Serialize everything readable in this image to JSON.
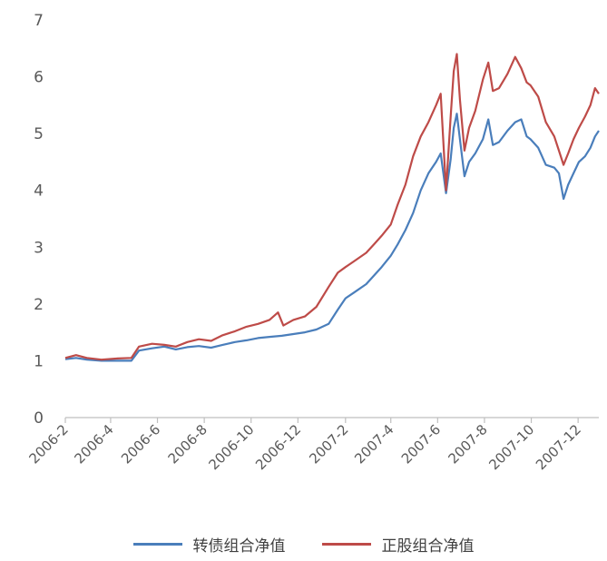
{
  "chart_data": {
    "type": "line",
    "title": "",
    "xlabel": "",
    "ylabel": "",
    "ylim": [
      0,
      7
    ],
    "yticks": [
      0,
      1,
      2,
      3,
      4,
      5,
      6,
      7
    ],
    "x_tick_labels": [
      "2006-2",
      "2006-4",
      "2006-6",
      "2006-8",
      "2006-10",
      "2006-12",
      "2007-2",
      "2007-4",
      "2007-6",
      "2007-8",
      "2007-10",
      "2007-12"
    ],
    "x_range": [
      "2006-02-01",
      "2007-12-28"
    ],
    "grid": false,
    "legend_position": "bottom",
    "series": [
      {
        "name": "转债组合净值",
        "color": "#4A7EBB",
        "points": [
          [
            "2006-02-01",
            1.03
          ],
          [
            "2006-02-15",
            1.05
          ],
          [
            "2006-03-01",
            1.02
          ],
          [
            "2006-03-20",
            1.0
          ],
          [
            "2006-04-10",
            1.0
          ],
          [
            "2006-04-28",
            1.0
          ],
          [
            "2006-05-08",
            1.18
          ],
          [
            "2006-05-25",
            1.22
          ],
          [
            "2006-06-10",
            1.25
          ],
          [
            "2006-06-25",
            1.2
          ],
          [
            "2006-07-10",
            1.24
          ],
          [
            "2006-07-25",
            1.26
          ],
          [
            "2006-08-10",
            1.23
          ],
          [
            "2006-08-25",
            1.28
          ],
          [
            "2006-09-10",
            1.33
          ],
          [
            "2006-09-25",
            1.36
          ],
          [
            "2006-10-10",
            1.4
          ],
          [
            "2006-10-25",
            1.42
          ],
          [
            "2006-11-10",
            1.44
          ],
          [
            "2006-11-25",
            1.47
          ],
          [
            "2006-12-10",
            1.5
          ],
          [
            "2006-12-25",
            1.55
          ],
          [
            "2007-01-10",
            1.65
          ],
          [
            "2007-01-22",
            1.9
          ],
          [
            "2007-02-01",
            2.1
          ],
          [
            "2007-02-12",
            2.2
          ],
          [
            "2007-02-28",
            2.35
          ],
          [
            "2007-03-10",
            2.5
          ],
          [
            "2007-03-20",
            2.65
          ],
          [
            "2007-04-01",
            2.85
          ],
          [
            "2007-04-10",
            3.05
          ],
          [
            "2007-04-20",
            3.3
          ],
          [
            "2007-04-30",
            3.6
          ],
          [
            "2007-05-10",
            4.0
          ],
          [
            "2007-05-20",
            4.3
          ],
          [
            "2007-05-30",
            4.5
          ],
          [
            "2007-06-05",
            4.65
          ],
          [
            "2007-06-12",
            3.95
          ],
          [
            "2007-06-18",
            4.55
          ],
          [
            "2007-06-22",
            5.1
          ],
          [
            "2007-06-26",
            5.35
          ],
          [
            "2007-06-30",
            4.9
          ],
          [
            "2007-07-06",
            4.25
          ],
          [
            "2007-07-12",
            4.5
          ],
          [
            "2007-07-20",
            4.65
          ],
          [
            "2007-07-30",
            4.9
          ],
          [
            "2007-08-06",
            5.25
          ],
          [
            "2007-08-12",
            4.8
          ],
          [
            "2007-08-20",
            4.85
          ],
          [
            "2007-08-31",
            5.05
          ],
          [
            "2007-09-10",
            5.2
          ],
          [
            "2007-09-18",
            5.25
          ],
          [
            "2007-09-25",
            4.95
          ],
          [
            "2007-09-30",
            4.9
          ],
          [
            "2007-10-10",
            4.75
          ],
          [
            "2007-10-20",
            4.45
          ],
          [
            "2007-10-31",
            4.4
          ],
          [
            "2007-11-06",
            4.3
          ],
          [
            "2007-11-12",
            3.85
          ],
          [
            "2007-11-18",
            4.1
          ],
          [
            "2007-11-25",
            4.3
          ],
          [
            "2007-12-02",
            4.5
          ],
          [
            "2007-12-10",
            4.6
          ],
          [
            "2007-12-17",
            4.75
          ],
          [
            "2007-12-23",
            4.95
          ],
          [
            "2007-12-28",
            5.05
          ]
        ]
      },
      {
        "name": "正股组合净值",
        "color": "#BE4B48",
        "points": [
          [
            "2006-02-01",
            1.05
          ],
          [
            "2006-02-15",
            1.1
          ],
          [
            "2006-03-01",
            1.05
          ],
          [
            "2006-03-20",
            1.02
          ],
          [
            "2006-04-10",
            1.04
          ],
          [
            "2006-04-28",
            1.05
          ],
          [
            "2006-05-08",
            1.25
          ],
          [
            "2006-05-25",
            1.3
          ],
          [
            "2006-06-10",
            1.28
          ],
          [
            "2006-06-25",
            1.25
          ],
          [
            "2006-07-10",
            1.33
          ],
          [
            "2006-07-25",
            1.38
          ],
          [
            "2006-08-10",
            1.35
          ],
          [
            "2006-08-25",
            1.45
          ],
          [
            "2006-09-10",
            1.52
          ],
          [
            "2006-09-25",
            1.6
          ],
          [
            "2006-10-10",
            1.65
          ],
          [
            "2006-10-25",
            1.72
          ],
          [
            "2006-11-05",
            1.85
          ],
          [
            "2006-11-12",
            1.62
          ],
          [
            "2006-11-25",
            1.72
          ],
          [
            "2006-12-10",
            1.78
          ],
          [
            "2006-12-25",
            1.95
          ],
          [
            "2007-01-10",
            2.3
          ],
          [
            "2007-01-22",
            2.55
          ],
          [
            "2007-02-01",
            2.65
          ],
          [
            "2007-02-12",
            2.75
          ],
          [
            "2007-02-28",
            2.9
          ],
          [
            "2007-03-10",
            3.05
          ],
          [
            "2007-03-20",
            3.2
          ],
          [
            "2007-04-01",
            3.4
          ],
          [
            "2007-04-10",
            3.75
          ],
          [
            "2007-04-20",
            4.1
          ],
          [
            "2007-04-30",
            4.6
          ],
          [
            "2007-05-10",
            4.95
          ],
          [
            "2007-05-20",
            5.2
          ],
          [
            "2007-05-30",
            5.5
          ],
          [
            "2007-06-05",
            5.7
          ],
          [
            "2007-06-12",
            4.0
          ],
          [
            "2007-06-18",
            5.3
          ],
          [
            "2007-06-22",
            6.1
          ],
          [
            "2007-06-26",
            6.4
          ],
          [
            "2007-06-30",
            5.6
          ],
          [
            "2007-07-06",
            4.7
          ],
          [
            "2007-07-12",
            5.1
          ],
          [
            "2007-07-20",
            5.4
          ],
          [
            "2007-07-30",
            5.95
          ],
          [
            "2007-08-06",
            6.25
          ],
          [
            "2007-08-12",
            5.75
          ],
          [
            "2007-08-20",
            5.8
          ],
          [
            "2007-08-31",
            6.05
          ],
          [
            "2007-09-10",
            6.35
          ],
          [
            "2007-09-18",
            6.15
          ],
          [
            "2007-09-25",
            5.9
          ],
          [
            "2007-09-30",
            5.85
          ],
          [
            "2007-10-10",
            5.65
          ],
          [
            "2007-10-20",
            5.2
          ],
          [
            "2007-10-31",
            4.95
          ],
          [
            "2007-11-06",
            4.7
          ],
          [
            "2007-11-12",
            4.45
          ],
          [
            "2007-11-18",
            4.65
          ],
          [
            "2007-11-25",
            4.9
          ],
          [
            "2007-12-02",
            5.1
          ],
          [
            "2007-12-10",
            5.3
          ],
          [
            "2007-12-17",
            5.5
          ],
          [
            "2007-12-23",
            5.8
          ],
          [
            "2007-12-28",
            5.7
          ]
        ]
      }
    ]
  }
}
